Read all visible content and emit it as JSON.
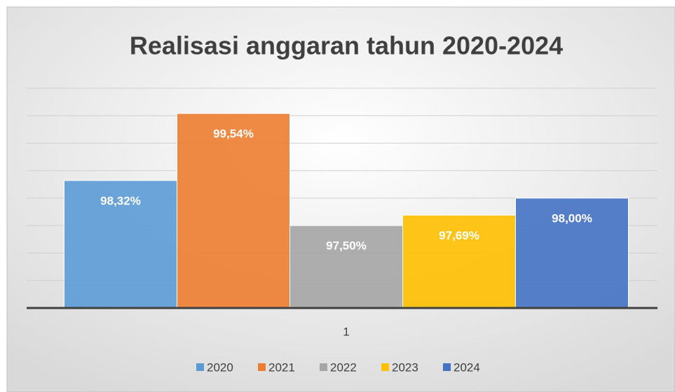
{
  "chart_data": {
    "type": "bar",
    "title": "Realisasi anggaran tahun 2020-2024",
    "categories": [
      "1"
    ],
    "series": [
      {
        "name": "2020",
        "color": "#5b9bd5",
        "values": [
          98.32
        ],
        "value_labels": [
          "98,32%"
        ]
      },
      {
        "name": "2021",
        "color": "#ed7d31",
        "values": [
          99.54
        ],
        "value_labels": [
          "99,54%"
        ]
      },
      {
        "name": "2022",
        "color": "#a5a5a5",
        "values": [
          97.5
        ],
        "value_labels": [
          "97,50%"
        ]
      },
      {
        "name": "2023",
        "color": "#ffc000",
        "values": [
          97.69
        ],
        "value_labels": [
          "97,69%"
        ]
      },
      {
        "name": "2024",
        "color": "#4472c4",
        "values": [
          98.0
        ],
        "value_labels": [
          "98,00%"
        ]
      }
    ],
    "ylim": [
      96,
      100
    ],
    "yticks": [
      96,
      96.5,
      97,
      97.5,
      98,
      98.5,
      99,
      99.5,
      100
    ],
    "grid": true,
    "legend": "bottom"
  }
}
